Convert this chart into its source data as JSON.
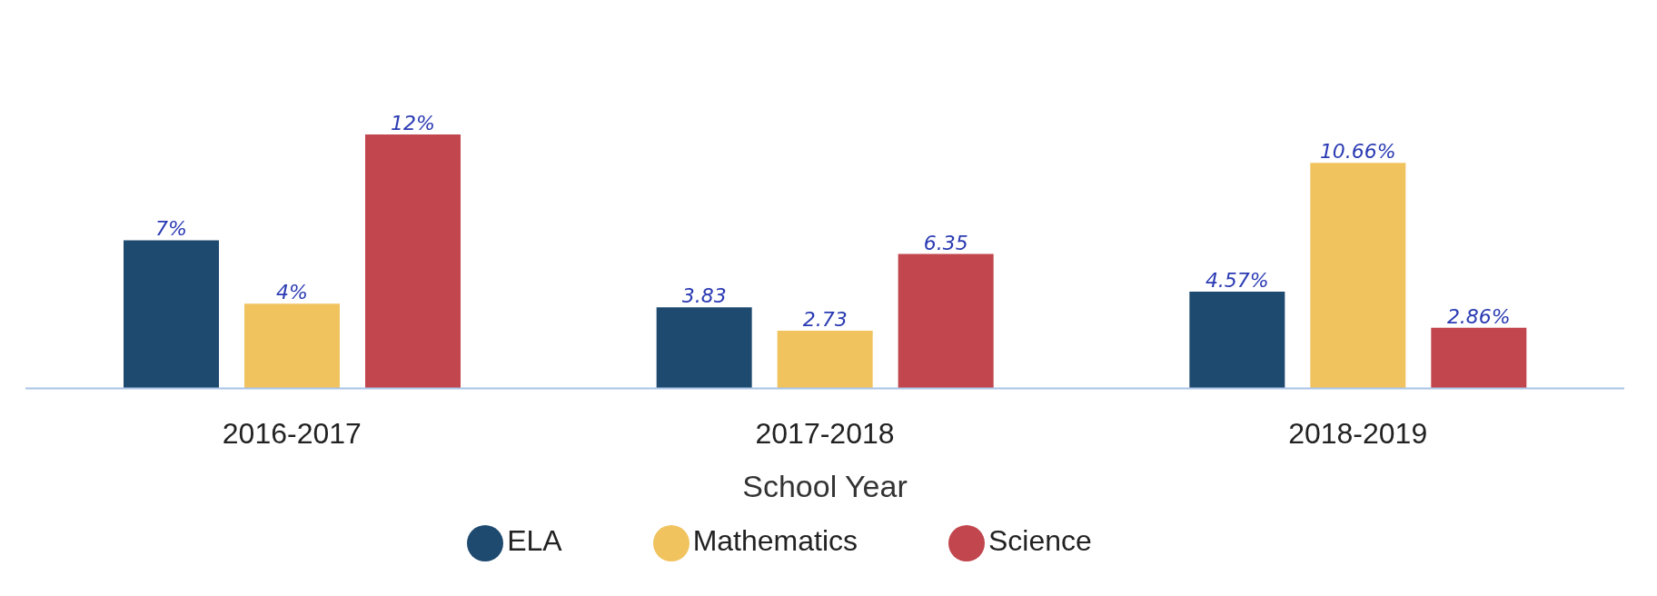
{
  "chart_data": {
    "type": "bar",
    "xlabel": "School Year",
    "categories": [
      "2016-2017",
      "2017-2018",
      "2018-2019"
    ],
    "series": [
      {
        "name": "ELA",
        "color": "#1f4a70",
        "values": [
          7,
          3.83,
          4.57
        ],
        "value_labels": [
          "7%",
          "3.83",
          "4.57%"
        ]
      },
      {
        "name": "Mathematics",
        "color": "#f1c35f",
        "values": [
          4,
          2.73,
          10.66
        ],
        "value_labels": [
          "4%",
          "2.73",
          "10.66%"
        ]
      },
      {
        "name": "Science",
        "color": "#c1464d",
        "values": [
          12,
          6.35,
          2.86
        ],
        "value_labels": [
          "12%",
          "6.35",
          "2.86%"
        ]
      }
    ],
    "legend": "bottom",
    "grid": false
  }
}
